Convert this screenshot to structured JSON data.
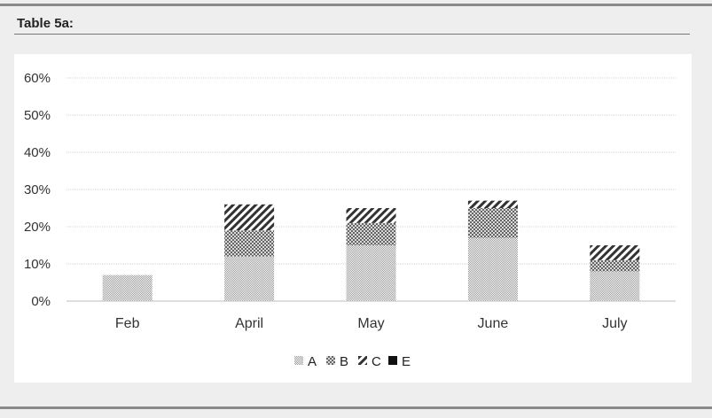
{
  "page": {
    "title": "Table 5a:"
  },
  "chart_data": {
    "type": "bar",
    "stacked": true,
    "categories": [
      "Feb",
      "April",
      "May",
      "June",
      "July"
    ],
    "series": [
      {
        "name": "A",
        "values": [
          7,
          12,
          15,
          17,
          8
        ]
      },
      {
        "name": "B",
        "values": [
          0,
          7,
          6,
          8,
          3
        ]
      },
      {
        "name": "C",
        "values": [
          0,
          7,
          4,
          2,
          4
        ]
      },
      {
        "name": "E",
        "values": [
          0,
          0,
          0,
          0,
          0
        ]
      }
    ],
    "ylim": [
      0,
      60
    ],
    "yticks": [
      "0%",
      "10%",
      "20%",
      "30%",
      "40%",
      "50%",
      "60%"
    ],
    "grid": true,
    "legend": "bottom",
    "title": "",
    "xlabel": "",
    "ylabel": ""
  }
}
